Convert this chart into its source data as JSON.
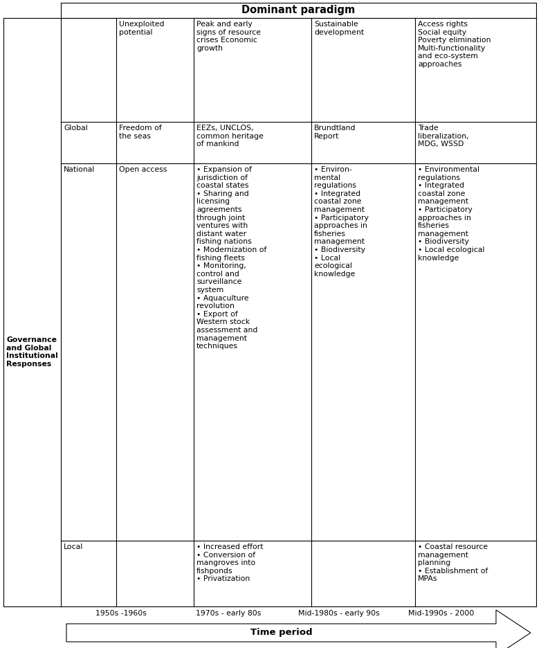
{
  "title": "Dominant paradigm",
  "left_label": "Governance\nand Global\nInstitutional\nResponses",
  "col_headers": [
    "",
    "Unexploited\npotential",
    "Peak and early\nsigns of resource\ncrises Economic\ngrowth",
    "Sustainable\ndevelopment",
    "Access rights\nSocial equity\nPoverty elimination\nMulti-functionality\nand eco-system\napproaches"
  ],
  "rows": [
    {
      "row_header": "Global",
      "cells": [
        "Freedom of\nthe seas",
        "EEZs, UNCLOS,\ncommon heritage\nof mankind",
        "Brundtland\nReport",
        "Trade\nliberalization,\nMDG, WSSD"
      ]
    },
    {
      "row_header": "National",
      "cells": [
        "Open access",
        "• Expansion of\njurisdiction of\ncoastal states\n• Sharing and\nlicensing\nagreements\nthrough joint\nventures with\ndistant water\nfishing nations\n• Modernization of\nfishing fleets\n• Monitoring,\ncontrol and\nsurveillance\nsystem\n• Aquaculture\nrevolution\n• Export of\nWestern stock\nassessment and\nmanagement\ntechniques",
        "• Environ-\nmental\nregulations\n• Integrated\ncoastal zone\nmanagement\n• Participatory\napproaches in\nfisheries\nmanagement\n• Biodiversity\n• Local\necological\nknowledge",
        "• Environmental\nregulations\n• Integrated\ncoastal zone\nmanagement\n• Participatory\napproaches in\nfisheries\nmanagement\n• Biodiversity\n• Local ecological\nknowledge"
      ]
    },
    {
      "row_header": "Local",
      "cells": [
        "",
        "• Increased effort\n• Conversion of\nmangroves into\nfishponds\n• Privatization",
        "",
        "• Coastal resource\nmanagement\nplanning\n• Establishment of\nMPAs"
      ]
    }
  ],
  "time_labels": [
    "1950s -1960s",
    "1970s - early 80s",
    "Mid-1980s - early 90s",
    "Mid-1990s - 2000"
  ],
  "arrow_label": "Time period",
  "bg_color": "#ffffff",
  "border_color": "#000000",
  "text_color": "#000000",
  "font_size": 7.8,
  "label_font_size": 7.8,
  "time_font_size": 7.8,
  "arrow_font_size": 9.5,
  "title_font_size": 10.5
}
